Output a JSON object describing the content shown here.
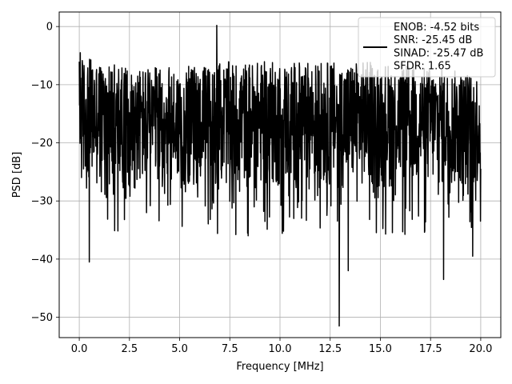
{
  "chart_data": {
    "type": "line",
    "xlabel": "Frequency [MHz]",
    "ylabel": "PSD [dB]",
    "xlim": [
      -1.0,
      21.0
    ],
    "ylim": [
      -53.5,
      2.5
    ],
    "xticks": [
      0.0,
      2.5,
      5.0,
      7.5,
      10.0,
      12.5,
      15.0,
      17.5,
      20.0
    ],
    "xtick_labels": [
      "0.0",
      "2.5",
      "5.0",
      "7.5",
      "10.0",
      "12.5",
      "15.0",
      "17.5",
      "20.0"
    ],
    "yticks": [
      0,
      -10,
      -20,
      -30,
      -40,
      -50
    ],
    "ytick_labels": [
      "0",
      "−10",
      "−20",
      "−30",
      "−40",
      "−50"
    ],
    "grid": true,
    "legend_position": "top-right",
    "legend_entries": [
      "ENOB: -4.52 bits",
      "SNR: -25.45 dB",
      "SINAD: -25.47 dB",
      "SFDR: 1.65"
    ],
    "series": [
      {
        "name": "ENOB: -4.52 bits\nSNR: -25.45 dB\nSINAD: -25.47 dB\nSFDR: 1.65",
        "color": "#000000",
        "description": "noisy PSD spanning 0 to 20 MHz, mostly between about -8 and -28 dB",
        "envelope": {
          "x": [
            0.0,
            2.5,
            5.0,
            7.5,
            10.0,
            12.5,
            15.0,
            17.5,
            20.0
          ],
          "upper_db": [
            -5,
            -7,
            -7,
            -6,
            -6,
            -6,
            -6,
            -7,
            -8
          ],
          "lower_db": [
            -28,
            -28,
            -28,
            -28,
            -28,
            -28,
            -28,
            -28,
            -28
          ]
        },
        "notable_points": [
          {
            "x": 0.05,
            "y": -4.5
          },
          {
            "x": 0.5,
            "y": -40.5
          },
          {
            "x": 6.85,
            "y": 0.2
          },
          {
            "x": 12.95,
            "y": -51.5
          },
          {
            "x": 13.4,
            "y": -42.0
          },
          {
            "x": 18.15,
            "y": -43.5
          },
          {
            "x": 19.6,
            "y": -39.5
          }
        ]
      }
    ]
  }
}
